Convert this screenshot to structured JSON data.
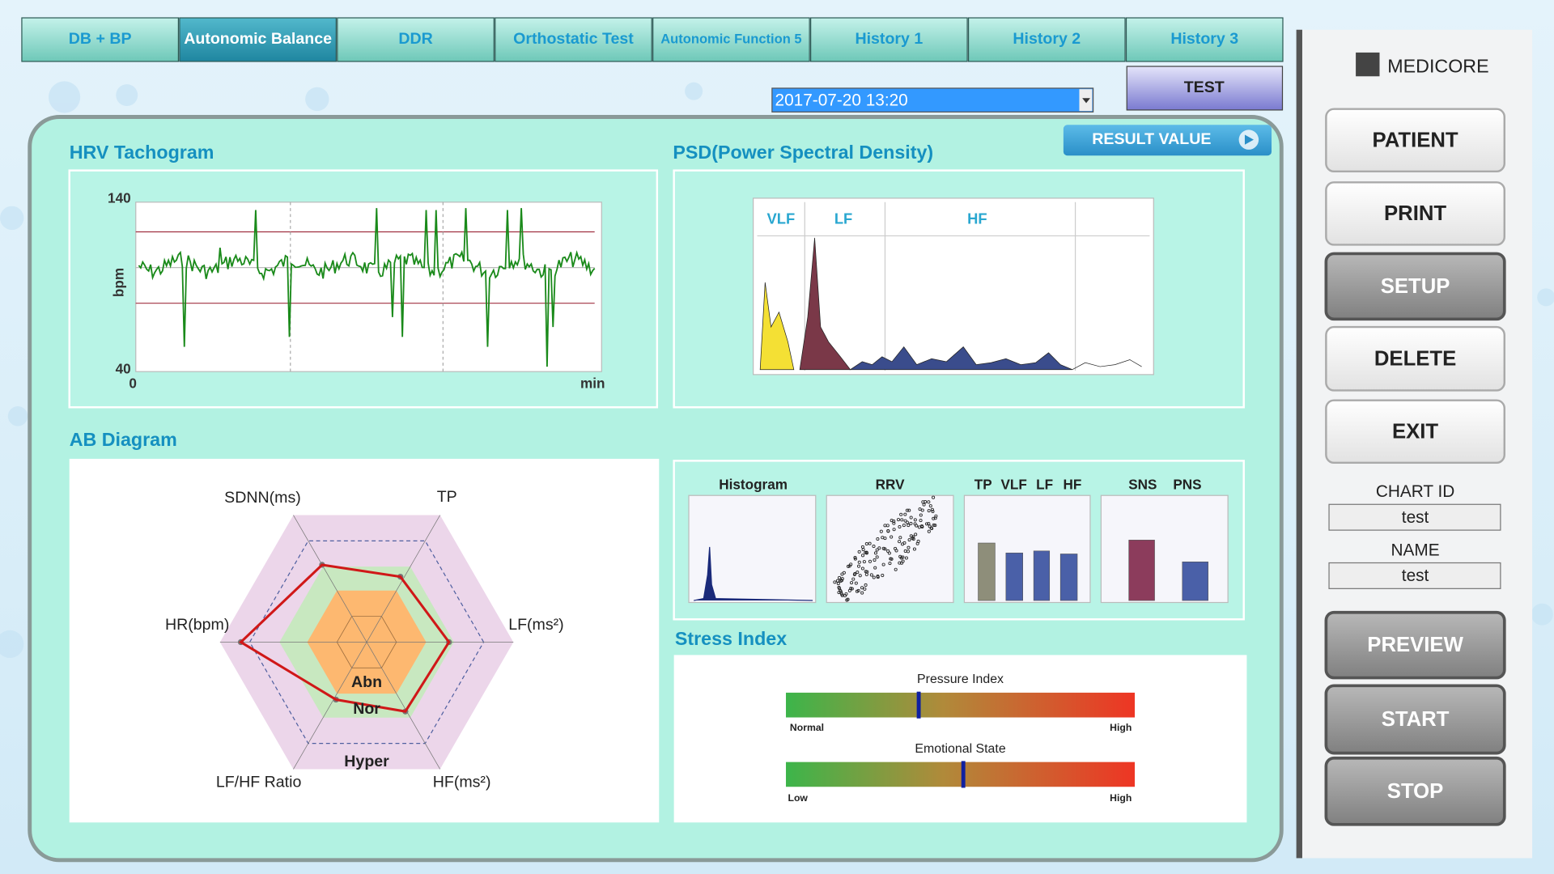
{
  "tabs": [
    "DB + BP",
    "Autonomic Balance",
    "DDR",
    "Orthostatic Test",
    "Autonomic Function 5",
    "History 1",
    "History 2",
    "History 3"
  ],
  "test_button": "TEST",
  "datetime": "2017-07-20 13:20",
  "result_button": "RESULT VALUE",
  "hrv": {
    "title": "HRV Tachogram",
    "y_label": "bpm",
    "y_top": "140",
    "y_bottom": "40",
    "x_start": "0",
    "x_end": "min"
  },
  "psd": {
    "title": "PSD(Power Spectral Density)",
    "bands": [
      "VLF",
      "LF",
      "HF"
    ]
  },
  "ab": {
    "title": "AB Diagram",
    "axes": [
      "SDNN(ms)",
      "TP",
      "LF(ms²)",
      "HF(ms²)",
      "LF/HF Ratio",
      "HR(bpm)"
    ],
    "zones": [
      "Abn",
      "Nor",
      "Hyper"
    ]
  },
  "mini": {
    "histogram": "Histogram",
    "rrv": "RRV",
    "power_bars": [
      "TP",
      "VLF",
      "LF",
      "HF"
    ],
    "balance_bars": [
      "SNS",
      "PNS"
    ]
  },
  "stress": {
    "title": "Stress Index",
    "pressure": {
      "label": "Pressure Index",
      "low": "Normal",
      "high": "High"
    },
    "emotional": {
      "label": "Emotional State",
      "low": "Low",
      "high": "High"
    }
  },
  "sidebar": {
    "brand": "MEDICORE",
    "top_buttons": [
      "PATIENT",
      "PRINT",
      "SETUP",
      "DELETE",
      "EXIT"
    ],
    "chart_id_label": "CHART ID",
    "chart_id": "test",
    "name_label": "NAME",
    "name": "test",
    "bottom_buttons": [
      "PREVIEW",
      "START",
      "STOP"
    ]
  }
}
